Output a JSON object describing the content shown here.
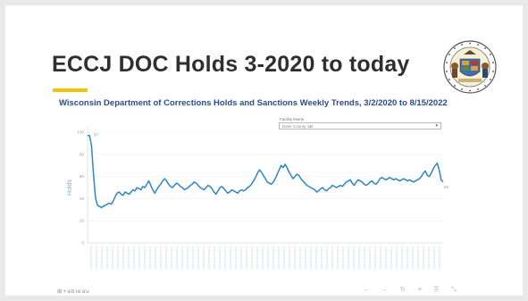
{
  "slide": {
    "title": "ECCJ DOC Holds 3-2020 to today",
    "accent_color": "#f2c500",
    "seal_icon": "wisconsin-state-seal"
  },
  "filter": {
    "label": "Facility Name",
    "value": "Dane County Jail"
  },
  "footer": {
    "brand": "⊞+ableau",
    "tools": "← → ↻ ≡ ⎘ ⤡"
  },
  "chart_data": {
    "type": "line",
    "title": "Wisconsin Department of Corrections Holds and Sanctions Weekly Trends, 3/2/2020 to 8/15/2022",
    "xlabel": "",
    "ylabel": "Holds",
    "ylim": [
      0,
      100
    ],
    "yticks": [
      0,
      20,
      40,
      60,
      80,
      100
    ],
    "grid": true,
    "line_color": "#2e86c1",
    "x_start": "3/2/2020",
    "x_end": "8/15/2022",
    "start_label": "97",
    "end_label": "55",
    "series": [
      {
        "values": [
          97,
          97,
          88,
          62,
          41,
          34,
          33,
          32,
          33,
          34,
          35,
          36,
          35,
          38,
          42,
          45,
          46,
          44,
          43,
          46,
          45,
          44,
          46,
          48,
          47,
          50,
          49,
          48,
          51,
          50,
          53,
          56,
          52,
          48,
          45,
          48,
          51,
          53,
          56,
          58,
          56,
          53,
          51,
          50,
          52,
          54,
          53,
          51,
          50,
          48,
          49,
          50,
          52,
          53,
          55,
          54,
          52,
          50,
          49,
          48,
          50,
          52,
          51,
          49,
          46,
          44,
          47,
          50,
          51,
          49,
          47,
          45,
          46,
          48,
          47,
          46,
          45,
          47,
          48,
          47,
          48,
          50,
          51,
          53,
          56,
          59,
          63,
          66,
          64,
          61,
          58,
          55,
          54,
          53,
          55,
          58,
          62,
          66,
          70,
          68,
          71,
          68,
          64,
          61,
          58,
          60,
          62,
          61,
          58,
          56,
          54,
          52,
          51,
          50,
          49,
          48,
          46,
          47,
          49,
          50,
          48,
          47,
          49,
          50,
          52,
          51,
          50,
          51,
          52,
          51,
          53,
          55,
          56,
          57,
          54,
          52,
          55,
          57,
          56,
          55,
          53,
          52,
          53,
          55,
          56,
          54,
          53,
          55,
          58,
          59,
          58,
          57,
          58,
          59,
          58,
          57,
          58,
          57,
          56,
          57,
          58,
          57,
          56,
          57,
          56,
          55,
          56,
          57,
          58,
          60,
          63,
          65,
          61,
          60,
          63,
          67,
          70,
          72,
          66,
          57,
          55
        ]
      }
    ]
  }
}
